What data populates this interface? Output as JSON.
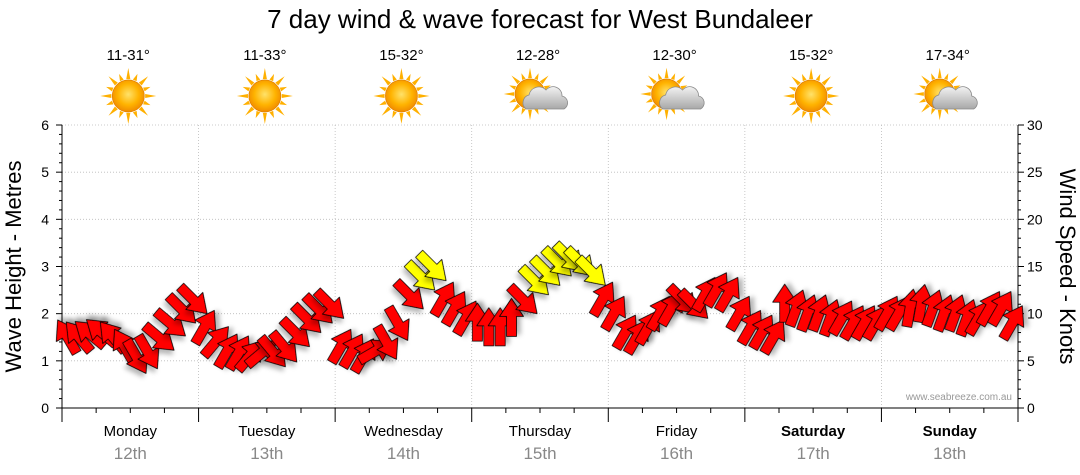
{
  "chart_data": {
    "type": "line",
    "title": "7 day wind & wave forecast for West Bundaleer",
    "ylabel_left": "Wave Height - Metres",
    "ylabel_right": "Wind Speed - Knots",
    "ylim_left": [
      0,
      6
    ],
    "ylim_right": [
      0,
      30
    ],
    "yticks_left": [
      "0",
      "1",
      "2",
      "3",
      "4",
      "5",
      "6"
    ],
    "yticks_right": [
      "0",
      "5",
      "10",
      "15",
      "20",
      "25",
      "30"
    ],
    "grid": true,
    "watermark": "www.seabreeze.com.au",
    "days": [
      {
        "name": "Monday",
        "date": "12th",
        "temp": "11-31°",
        "weather": "sunny-icon",
        "bold": false
      },
      {
        "name": "Tuesday",
        "date": "13th",
        "temp": "11-33°",
        "weather": "sunny-icon",
        "bold": false
      },
      {
        "name": "Wednesday",
        "date": "14th",
        "temp": "15-32°",
        "weather": "sunny-icon",
        "bold": false
      },
      {
        "name": "Thursday",
        "date": "15th",
        "temp": "12-28°",
        "weather": "partly-cloudy-icon",
        "bold": false
      },
      {
        "name": "Friday",
        "date": "16th",
        "temp": "12-30°",
        "weather": "partly-cloudy-icon",
        "bold": false
      },
      {
        "name": "Saturday",
        "date": "17th",
        "temp": "15-32°",
        "weather": "sunny-icon",
        "bold": true
      },
      {
        "name": "Sunday",
        "date": "18th",
        "temp": "17-34°",
        "weather": "partly-cloudy-icon",
        "bold": true
      }
    ],
    "series": [
      {
        "unit": "knots",
        "colors": {
          "low": "#ff0000",
          "high": "#ffff00",
          "outline": "#000000"
        },
        "threshold_knots": 13,
        "wind_knots": [
          7.5,
          7.5,
          7.8,
          8.0,
          7.5,
          6.5,
          5.5,
          6.0,
          7.5,
          9.0,
          10.5,
          11.5,
          8.5,
          7.0,
          6.0,
          5.8,
          5.5,
          5.8,
          6.0,
          6.5,
          8.0,
          9.5,
          10.5,
          11.0,
          6.5,
          6.0,
          5.5,
          6.0,
          7.0,
          9.0,
          12.0,
          14.0,
          15.0,
          11.5,
          10.5,
          9.5,
          9.0,
          8.5,
          8.5,
          9.5,
          11.5,
          13.5,
          14.5,
          15.5,
          16.0,
          15.5,
          14.5,
          11.5,
          10.0,
          8.0,
          7.5,
          8.5,
          10.0,
          10.5,
          11.5,
          11.0,
          12.0,
          12.5,
          12.0,
          10.0,
          8.5,
          8.0,
          7.5,
          11.0,
          10.5,
          10.0,
          10.0,
          9.5,
          9.5,
          9.0,
          9.0,
          9.0,
          10.0,
          10.0,
          10.5,
          11.0,
          10.5,
          10.0,
          10.0,
          9.5,
          9.5,
          10.5,
          10.5,
          9.0
        ],
        "dir_deg": [
          240,
          230,
          220,
          220,
          230,
          240,
          60,
          60,
          40,
          40,
          45,
          45,
          300,
          310,
          300,
          300,
          310,
          320,
          50,
          50,
          45,
          45,
          45,
          45,
          300,
          300,
          300,
          330,
          60,
          60,
          45,
          45,
          45,
          300,
          300,
          300,
          270,
          270,
          270,
          270,
          45,
          45,
          45,
          45,
          45,
          45,
          45,
          300,
          300,
          300,
          300,
          300,
          300,
          300,
          45,
          45,
          300,
          300,
          300,
          300,
          300,
          300,
          300,
          270,
          290,
          290,
          290,
          290,
          300,
          300,
          300,
          300,
          300,
          300,
          280,
          280,
          290,
          290,
          290,
          290,
          300,
          300,
          300,
          300
        ]
      }
    ]
  }
}
